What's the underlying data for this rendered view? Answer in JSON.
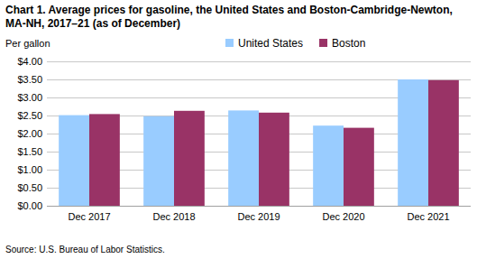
{
  "chart_data": {
    "type": "bar",
    "title": "Chart 1. Average prices for gasoline, the United States and Boston-Cambridge-Newton, MA-NH, 2017–21 (as of December)",
    "y_label": "Per gallon",
    "source": "Source: U.S. Bureau of Labor Statistics.",
    "categories": [
      "Dec 2017",
      "Dec 2018",
      "Dec 2019",
      "Dec 2020",
      "Dec 2021"
    ],
    "series": [
      {
        "name": "United States",
        "color": "#99ccff",
        "values": [
          2.51,
          2.48,
          2.64,
          2.22,
          3.5
        ]
      },
      {
        "name": "Boston",
        "color": "#993366",
        "values": [
          2.54,
          2.63,
          2.58,
          2.16,
          3.48
        ]
      }
    ],
    "ylim": [
      0,
      4
    ],
    "yticks": [
      {
        "value": 0,
        "label": "$0.00"
      },
      {
        "value": 0.5,
        "label": "$0.50"
      },
      {
        "value": 1,
        "label": "$1.00"
      },
      {
        "value": 1.5,
        "label": "$1.50"
      },
      {
        "value": 2,
        "label": "$2.00"
      },
      {
        "value": 2.5,
        "label": "$2.50"
      },
      {
        "value": 3,
        "label": "$3.00"
      },
      {
        "value": 3.5,
        "label": "$3.50"
      },
      {
        "value": 4,
        "label": "$4.00"
      }
    ],
    "grid": true,
    "legend": "top"
  }
}
